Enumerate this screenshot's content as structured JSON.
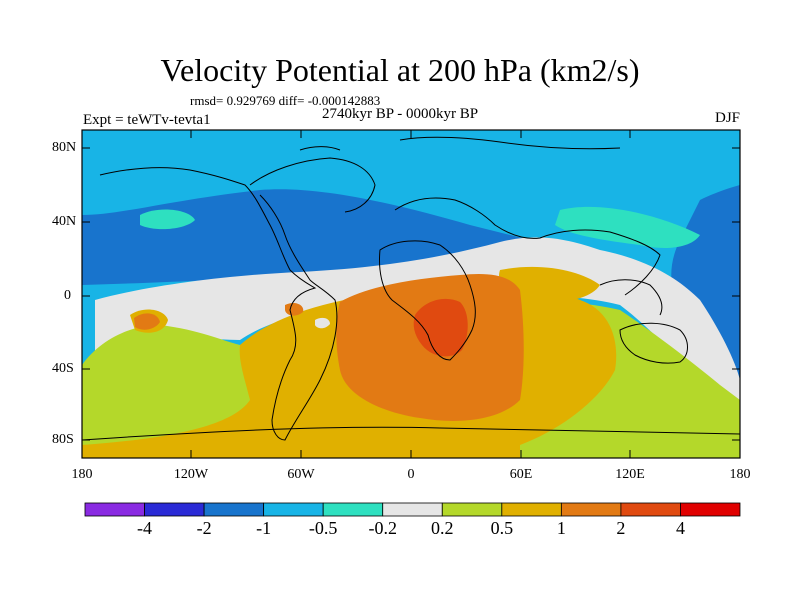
{
  "title": "Velocity Potential at 200 hPa (km2/s)",
  "stats": "rmsd= 0.929769 diff= -0.000142883",
  "period": "2740kyr BP - 0000kyr BP",
  "experiment": "Expt = teWTv-tevta1",
  "season": "DJF",
  "lat_labels": [
    "80N",
    "40N",
    "0",
    "40S",
    "80S"
  ],
  "lon_labels": [
    "180",
    "120W",
    "60W",
    "0",
    "60E",
    "120E",
    "180"
  ],
  "colorbar": {
    "labels": [
      "-4",
      "-2",
      "-1",
      "-0.5",
      "-0.2",
      "0.2",
      "0.5",
      "1",
      "2",
      "4"
    ],
    "colors": [
      "#8a2be2",
      "#2a2ad6",
      "#1874cd",
      "#18b4e6",
      "#2ee0c0",
      "#e6e6e6",
      "#b4d82a",
      "#e0b000",
      "#e27a14",
      "#e04a10",
      "#e00000"
    ]
  }
}
